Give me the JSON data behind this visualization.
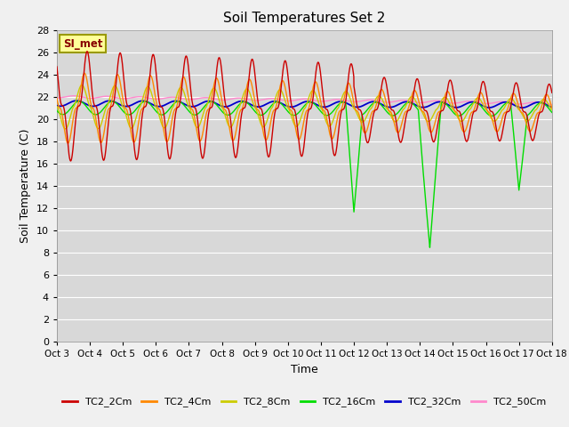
{
  "title": "Soil Temperatures Set 2",
  "xlabel": "Time",
  "ylabel": "Soil Temperature (C)",
  "ylim": [
    0,
    28
  ],
  "yticks": [
    0,
    2,
    4,
    6,
    8,
    10,
    12,
    14,
    16,
    18,
    20,
    22,
    24,
    26,
    28
  ],
  "x_labels": [
    "Oct 3",
    "Oct 4",
    "Oct 5",
    "Oct 6",
    "Oct 7",
    "Oct 8",
    "Oct 9",
    "Oct 10",
    "Oct 11",
    "Oct 12",
    "Oct 13",
    "Oct 14",
    "Oct 15",
    "Oct 16",
    "Oct 17",
    "Oct 18"
  ],
  "series_colors": [
    "#cc0000",
    "#ff8800",
    "#cccc00",
    "#00dd00",
    "#0000cc",
    "#ff88cc"
  ],
  "series_labels": [
    "TC2_2Cm",
    "TC2_4Cm",
    "TC2_8Cm",
    "TC2_16Cm",
    "TC2_32Cm",
    "TC2_50Cm"
  ],
  "bg_color": "#d8d8d8",
  "grid_color": "#ffffff",
  "fig_bg_color": "#f0f0f0",
  "annotation_text": "SI_met",
  "annotation_bg": "#ffff99",
  "annotation_edge": "#999900"
}
